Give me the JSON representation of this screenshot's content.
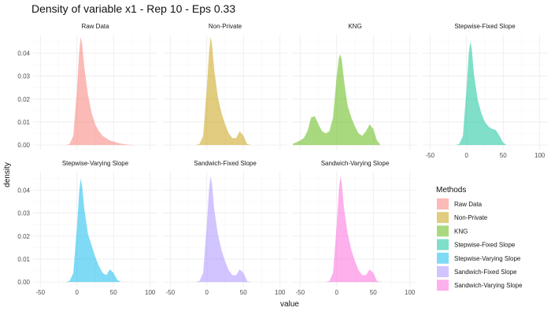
{
  "chart_data": {
    "type": "area",
    "title": "Density of variable x1 - Rep 10 - Eps 0.33",
    "xlabel": "value",
    "ylabel": "density",
    "xlim": [
      -60,
      110
    ],
    "ylim": [
      -0.002,
      0.048
    ],
    "x_ticks": [
      -50,
      0,
      50,
      100
    ],
    "x_tick_labels": [
      "-50",
      "0",
      "50",
      "100"
    ],
    "y_ticks": [
      0,
      0.01,
      0.02,
      0.03,
      0.04
    ],
    "y_tick_labels": [
      "0.00",
      "0.01",
      "0.02",
      "0.03",
      "0.04"
    ],
    "grid": true,
    "legend": {
      "title": "Methods",
      "placement": "right",
      "entries": [
        "Raw Data",
        "Non-Private",
        "KNG",
        "Stepwise-Fixed Slope",
        "Stepwise-Varying Slope",
        "Sandwich-Fixed Slope",
        "Sandwich-Varying Slope"
      ]
    },
    "panels": [
      {
        "name": "Raw Data",
        "color": "#F8766D",
        "x": [
          -15,
          -10,
          -5,
          0,
          3,
          5,
          7,
          10,
          15,
          20,
          25,
          30,
          35,
          40,
          45,
          50,
          55,
          60,
          70,
          80
        ],
        "y": [
          0,
          0.0005,
          0.004,
          0.024,
          0.04,
          0.047,
          0.044,
          0.034,
          0.022,
          0.014,
          0.009,
          0.006,
          0.004,
          0.003,
          0.002,
          0.0015,
          0.001,
          0.0006,
          0.0002,
          0
        ]
      },
      {
        "name": "Non-Private",
        "color": "#C49A00",
        "x": [
          -15,
          -10,
          -5,
          0,
          3,
          5,
          7,
          10,
          15,
          20,
          25,
          30,
          35,
          40,
          45,
          50,
          55,
          60
        ],
        "y": [
          0,
          0.0005,
          0.004,
          0.025,
          0.04,
          0.047,
          0.044,
          0.033,
          0.021,
          0.014,
          0.009,
          0.005,
          0.003,
          0.003,
          0.006,
          0.004,
          0.0005,
          0
        ]
      },
      {
        "name": "KNG",
        "color": "#53B400",
        "x": [
          -60,
          -50,
          -45,
          -40,
          -35,
          -30,
          -25,
          -20,
          -15,
          -10,
          -5,
          0,
          3,
          5,
          7,
          10,
          15,
          20,
          25,
          30,
          35,
          40,
          45,
          50,
          55,
          60
        ],
        "y": [
          0.0005,
          0.002,
          0.003,
          0.006,
          0.012,
          0.0125,
          0.009,
          0.006,
          0.005,
          0.006,
          0.012,
          0.03,
          0.038,
          0.0395,
          0.037,
          0.028,
          0.017,
          0.012,
          0.008,
          0.005,
          0.004,
          0.006,
          0.009,
          0.007,
          0.002,
          0
        ]
      },
      {
        "name": "Stepwise-Fixed Slope",
        "color": "#00C094",
        "x": [
          -15,
          -10,
          -5,
          0,
          3,
          5,
          7,
          10,
          15,
          20,
          25,
          30,
          35,
          40,
          45,
          50,
          55
        ],
        "y": [
          0,
          0.0005,
          0.004,
          0.025,
          0.04,
          0.045,
          0.042,
          0.031,
          0.02,
          0.014,
          0.01,
          0.008,
          0.007,
          0.0065,
          0.004,
          0.001,
          0
        ]
      },
      {
        "name": "Stepwise-Varying Slope",
        "color": "#00B6EB",
        "x": [
          -15,
          -10,
          -5,
          0,
          3,
          5,
          7,
          10,
          15,
          20,
          25,
          30,
          35,
          40,
          45,
          50,
          55,
          60
        ],
        "y": [
          0,
          0.0005,
          0.004,
          0.024,
          0.039,
          0.045,
          0.042,
          0.032,
          0.021,
          0.016,
          0.011,
          0.007,
          0.004,
          0.003,
          0.0055,
          0.004,
          0.001,
          0
        ]
      },
      {
        "name": "Sandwich-Fixed Slope",
        "color": "#A58AFF",
        "x": [
          -15,
          -10,
          -5,
          0,
          3,
          5,
          7,
          10,
          15,
          20,
          25,
          30,
          35,
          40,
          45,
          50,
          55,
          60
        ],
        "y": [
          0,
          0.0005,
          0.004,
          0.025,
          0.04,
          0.046,
          0.043,
          0.032,
          0.021,
          0.014,
          0.009,
          0.005,
          0.003,
          0.003,
          0.0055,
          0.004,
          0.0005,
          0
        ]
      },
      {
        "name": "Sandwich-Varying Slope",
        "color": "#FB61D7",
        "x": [
          -15,
          -10,
          -5,
          0,
          3,
          5,
          7,
          10,
          15,
          20,
          25,
          30,
          35,
          40,
          45,
          50,
          55,
          60
        ],
        "y": [
          0,
          0.0005,
          0.004,
          0.025,
          0.04,
          0.046,
          0.043,
          0.032,
          0.021,
          0.014,
          0.009,
          0.005,
          0.003,
          0.003,
          0.0055,
          0.004,
          0.0005,
          0
        ]
      }
    ]
  }
}
